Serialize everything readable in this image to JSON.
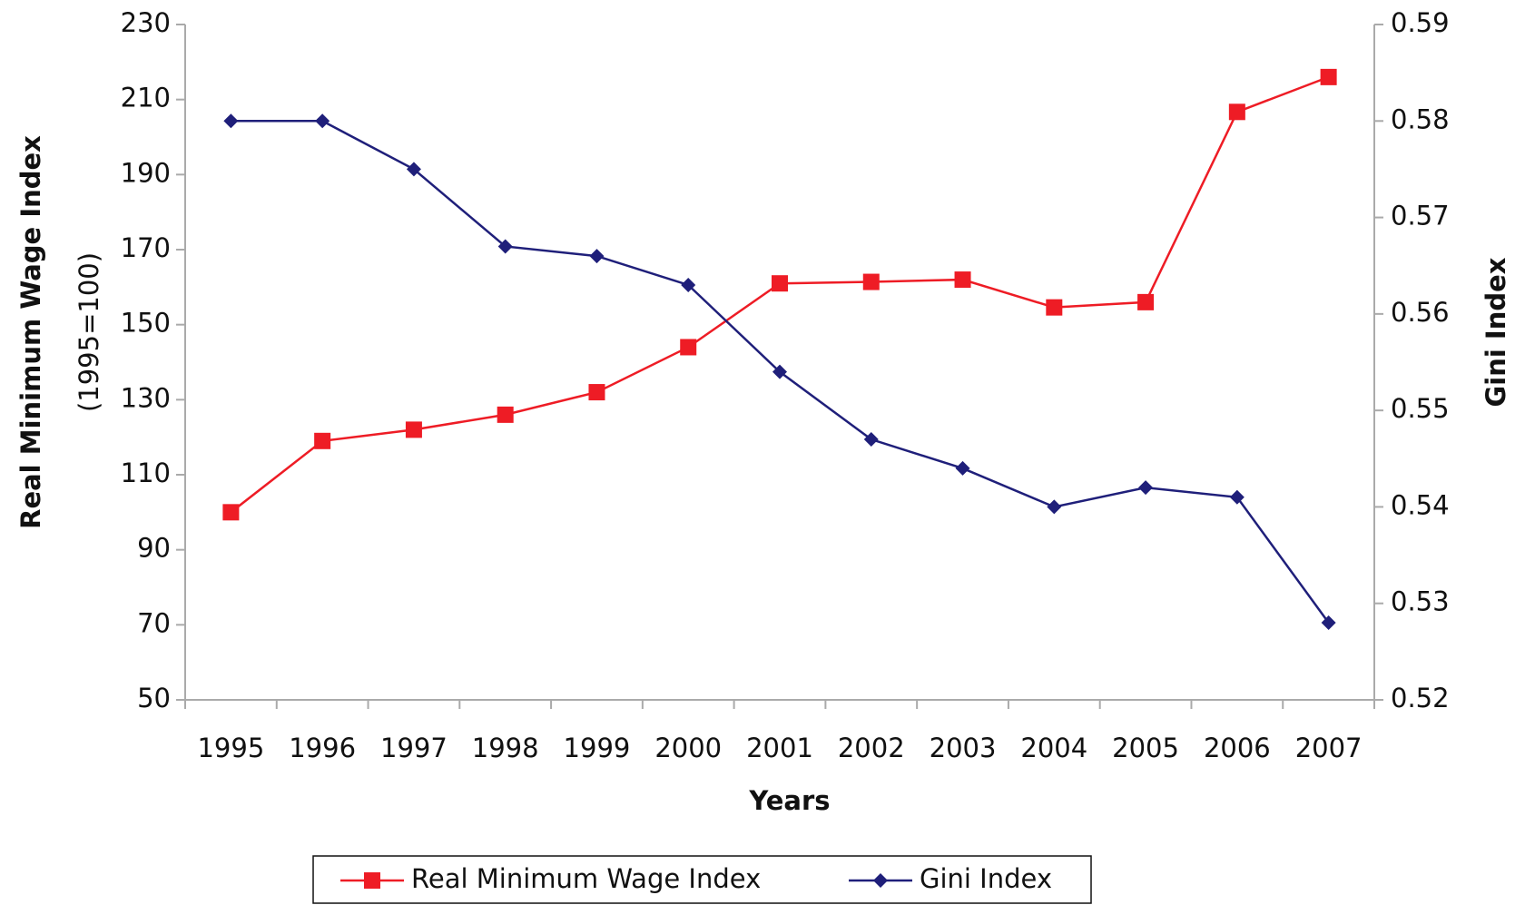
{
  "chart_data": {
    "type": "line",
    "y_label": "Real Minimum Wage Index",
    "y_sublabel": "(1995=100)",
    "y2_label": "Gini Index",
    "x_label": "Years",
    "categories": [
      "1995",
      "1996",
      "1997",
      "1998",
      "1999",
      "2000",
      "2001",
      "2002",
      "2003",
      "2004",
      "2005",
      "2006",
      "2007"
    ],
    "series": [
      {
        "name": "Real Minimum Wage Index",
        "color": "#ee1c25",
        "marker": "square",
        "values": [
          100,
          119,
          122,
          126,
          132,
          144,
          161,
          161.4,
          162,
          154.6,
          156,
          206.7,
          216
        ]
      },
      {
        "name": "Gini Index",
        "color": "#1f1f7a",
        "marker": "diamond",
        "axis": "y2",
        "values": [
          0.58,
          0.58,
          0.575,
          0.567,
          0.566,
          0.563,
          0.554,
          0.547,
          0.544,
          0.54,
          0.542,
          0.541,
          0.528
        ]
      }
    ],
    "ylim": [
      50,
      230
    ],
    "yticks": [
      50,
      70,
      90,
      110,
      130,
      150,
      170,
      190,
      210,
      230
    ],
    "y2lim": [
      0.52,
      0.59
    ],
    "y2ticks": [
      0.52,
      0.53,
      0.54,
      0.55,
      0.56,
      0.57,
      0.58,
      0.59
    ],
    "legend": "bottom"
  }
}
